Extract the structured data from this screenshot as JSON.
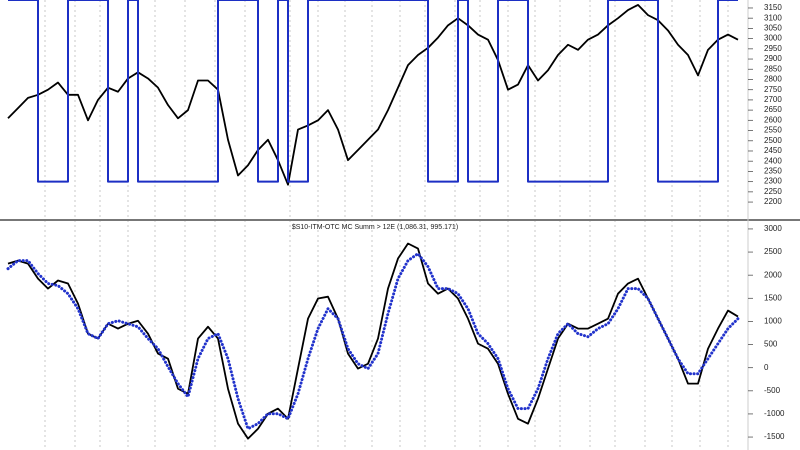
{
  "chart_data": [
    {
      "type": "line",
      "ylim": [
        2122,
        3189
      ],
      "yticks": [
        2200,
        2250,
        2300,
        2350,
        2400,
        2450,
        2500,
        2550,
        2600,
        2650,
        2700,
        2750,
        2800,
        2850,
        2900,
        2950,
        3000,
        3050,
        3100,
        3150
      ],
      "series": [
        {
          "color": "#000000",
          "values": [
            2610,
            2660,
            2710,
            2725,
            2750,
            2785,
            2725,
            2725,
            2600,
            2700,
            2760,
            2740,
            2805,
            2835,
            2805,
            2760,
            2675,
            2610,
            2650,
            2795,
            2795,
            2750,
            2505,
            2330,
            2380,
            2455,
            2505,
            2405,
            2285,
            2555,
            2575,
            2600,
            2650,
            2555,
            2405,
            2455,
            2505,
            2555,
            2650,
            2760,
            2870,
            2920,
            2955,
            3005,
            3065,
            3100,
            3065,
            3020,
            2995,
            2895,
            2750,
            2775,
            2870,
            2795,
            2845,
            2920,
            2970,
            2945,
            2995,
            3020,
            3065,
            3100,
            3140,
            3165,
            3115,
            3090,
            3040,
            2970,
            2920,
            2820,
            2945,
            2995,
            3020,
            2995
          ]
        },
        {
          "color": "#1c2fc4",
          "step": true,
          "values": [
            3189,
            3189,
            3189,
            2300,
            2300,
            2300,
            3189,
            3189,
            3189,
            3189,
            2300,
            2300,
            3189,
            2300,
            2300,
            2300,
            2300,
            2300,
            2300,
            2300,
            2300,
            3189,
            3189,
            3189,
            3189,
            2300,
            2300,
            3189,
            2300,
            2300,
            3189,
            3189,
            3189,
            3189,
            3189,
            3189,
            3189,
            3189,
            3189,
            3189,
            3189,
            3189,
            2300,
            2300,
            2300,
            3189,
            2300,
            2300,
            2300,
            3189,
            3189,
            3189,
            2300,
            2300,
            2300,
            2300,
            2300,
            2300,
            2300,
            2300,
            3189,
            3189,
            3189,
            3189,
            3189,
            2300,
            2300,
            2300,
            2300,
            2300,
            2300,
            3189,
            3189,
            3189
          ]
        }
      ]
    },
    {
      "type": "line",
      "title": "$S10-ITM-OTC MC Summ > 12E (1,086.31, 995.171)",
      "ylim": [
        -1780,
        3150
      ],
      "yticks": [
        -1500,
        -1000,
        -500,
        0,
        500,
        1000,
        1500,
        2000,
        2500,
        3000
      ],
      "series": [
        {
          "color": "#000000",
          "values": [
            2250,
            2315,
            2250,
            1925,
            1710,
            1885,
            1820,
            1385,
            735,
            630,
            950,
            845,
            950,
            1015,
            735,
            305,
            195,
            -455,
            -565,
            630,
            885,
            630,
            -455,
            -1210,
            -1535,
            -1320,
            -995,
            -885,
            -1105,
            -20,
            1060,
            1495,
            1535,
            1060,
            305,
            -20,
            85,
            630,
            1710,
            2360,
            2685,
            2575,
            1820,
            1600,
            1710,
            1495,
            1060,
            520,
            410,
            85,
            -565,
            -1105,
            -1210,
            -670,
            -20,
            630,
            950,
            845,
            845,
            950,
            1060,
            1600,
            1820,
            1925,
            1495,
            1060,
            630,
            195,
            -345,
            -345,
            410,
            845,
            1235,
            1105
          ]
        },
        {
          "color": "#2233cc",
          "dots": true,
          "values": [
            2140,
            2315,
            2315,
            2035,
            1820,
            1775,
            1600,
            1275,
            735,
            630,
            950,
            1015,
            950,
            885,
            630,
            410,
            20,
            -345,
            -630,
            195,
            630,
            735,
            195,
            -670,
            -1320,
            -1210,
            -995,
            -995,
            -1105,
            -565,
            195,
            845,
            1275,
            1060,
            410,
            85,
            -20,
            305,
            1170,
            1925,
            2315,
            2465,
            2185,
            1710,
            1710,
            1600,
            1275,
            735,
            520,
            195,
            -455,
            -885,
            -885,
            -455,
            195,
            735,
            950,
            735,
            670,
            845,
            950,
            1275,
            1710,
            1710,
            1495,
            1060,
            630,
            195,
            -130,
            -130,
            195,
            520,
            845,
            1060
          ]
        }
      ]
    }
  ]
}
